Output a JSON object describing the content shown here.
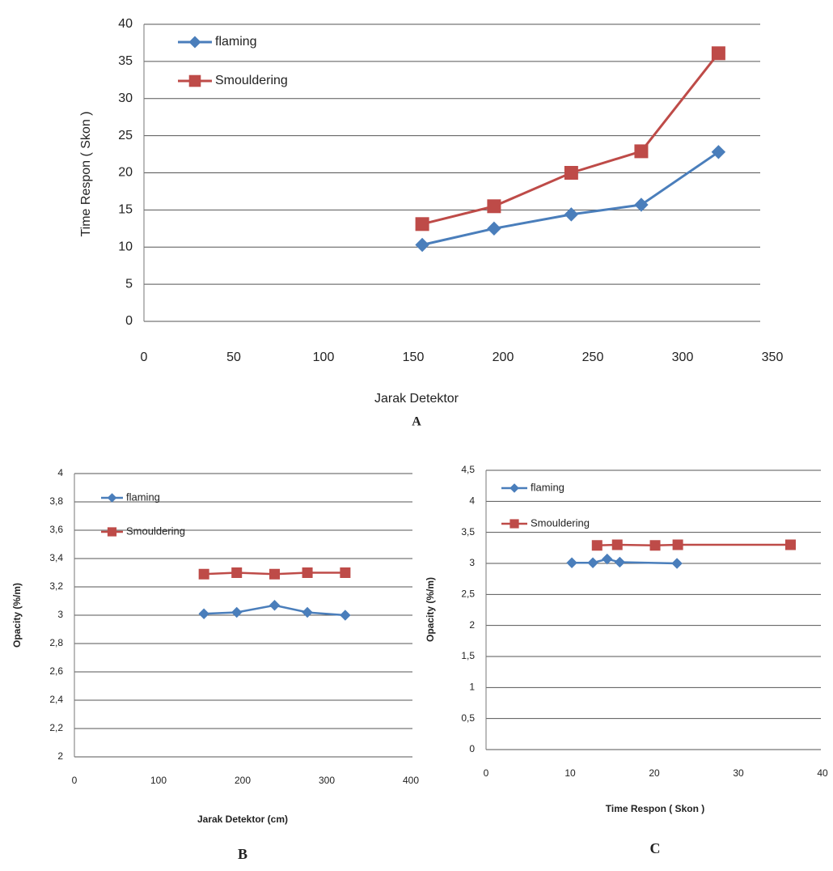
{
  "chart_data": [
    {
      "type": "line",
      "caption": "A",
      "xlabel": "Jarak Detektor",
      "ylabel": "Time Respon ( Skon )",
      "xlim": [
        0,
        350
      ],
      "xticks": [
        0,
        50,
        100,
        150,
        200,
        250,
        300,
        350
      ],
      "ylim": [
        0,
        40
      ],
      "yticks": [
        0,
        5,
        10,
        15,
        20,
        25,
        30,
        35,
        40
      ],
      "grid": true,
      "legend": "upper left",
      "series": [
        {
          "name": "flaming",
          "color": "#4a7ebb",
          "marker": "diamond",
          "x": [
            155,
            195,
            238,
            277,
            320
          ],
          "values": [
            10.3,
            12.5,
            14.4,
            15.7,
            22.8
          ]
        },
        {
          "name": "Smouldering",
          "color": "#be4b48",
          "marker": "square",
          "x": [
            155,
            195,
            238,
            277,
            320
          ],
          "values": [
            13.1,
            15.5,
            20.0,
            22.9,
            36.1
          ]
        }
      ]
    },
    {
      "type": "line",
      "caption": "B",
      "xlabel": "Jarak Detektor (cm)",
      "ylabel": "Opacity (%/m)",
      "xlim": [
        0,
        400
      ],
      "xticks": [
        0,
        100,
        200,
        300,
        400
      ],
      "ylim": [
        2,
        4
      ],
      "yticks": [
        2,
        {
          "value": 2.2,
          "label": "2,2"
        },
        {
          "value": 2.4,
          "label": "2,4"
        },
        {
          "value": 2.6,
          "label": "2,6"
        },
        {
          "value": 2.8,
          "label": "2,8"
        },
        3,
        {
          "value": 3.2,
          "label": "3,2"
        },
        {
          "value": 3.4,
          "label": "3,4"
        },
        {
          "value": 3.6,
          "label": "3,6"
        },
        {
          "value": 3.8,
          "label": "3,8"
        },
        4
      ],
      "grid": true,
      "legend": "upper left",
      "series": [
        {
          "name": "flaming",
          "color": "#4a7ebb",
          "marker": "diamond",
          "x": [
            154,
            193,
            238,
            277,
            322
          ],
          "values": [
            3.01,
            3.02,
            3.07,
            3.02,
            3.0
          ]
        },
        {
          "name": "Smouldering",
          "color": "#be4b48",
          "marker": "square",
          "x": [
            154,
            193,
            238,
            277,
            322
          ],
          "values": [
            3.29,
            3.3,
            3.29,
            3.3,
            3.3
          ]
        }
      ]
    },
    {
      "type": "line",
      "caption": "C",
      "xlabel": "Time Respon ( Skon )",
      "ylabel": "Opacity (%/m)",
      "xlim": [
        0,
        40
      ],
      "xticks": [
        0,
        10,
        20,
        30,
        40
      ],
      "ylim": [
        0,
        4.5
      ],
      "yticks": [
        0,
        {
          "value": 0.5,
          "label": "0,5"
        },
        1,
        {
          "value": 1.5,
          "label": "1,5"
        },
        2,
        {
          "value": 2.5,
          "label": "2,5"
        },
        3,
        {
          "value": 3.5,
          "label": "3,5"
        },
        4,
        {
          "value": 4.5,
          "label": "4,5"
        }
      ],
      "grid": true,
      "legend": "upper left",
      "series": [
        {
          "name": "flaming",
          "color": "#4a7ebb",
          "marker": "diamond",
          "x": [
            10.2,
            12.7,
            14.4,
            15.9,
            22.7
          ],
          "values": [
            3.01,
            3.01,
            3.07,
            3.02,
            3.0
          ]
        },
        {
          "name": "Smouldering",
          "color": "#be4b48",
          "marker": "square",
          "x": [
            13.2,
            15.6,
            20.1,
            22.8,
            36.2
          ],
          "values": [
            3.29,
            3.3,
            3.29,
            3.3,
            3.3
          ]
        }
      ]
    }
  ]
}
